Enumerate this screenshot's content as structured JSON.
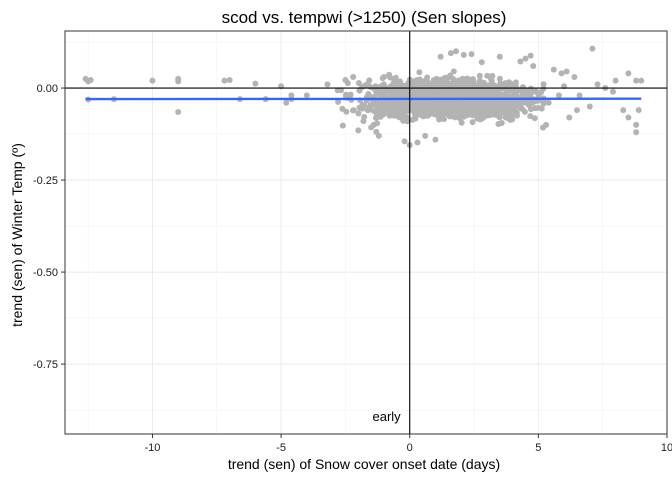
{
  "chart_data": {
    "type": "scatter",
    "title": "scod vs. tempwi (>1250) (Sen slopes)",
    "xlabel": "trend (sen) of Snow cover onset date (days)",
    "ylabel": "trend (sen) of Winter Temp (º)",
    "xlim": [
      -13.4,
      10.0
    ],
    "ylim": [
      -0.94,
      0.155
    ],
    "xticks": [
      -10,
      -5,
      0,
      5,
      10
    ],
    "yticks": [
      0.0,
      -0.25,
      -0.5,
      -0.75
    ],
    "xtick_labels": [
      "-10",
      "-5",
      "0",
      "5",
      "10"
    ],
    "ytick_labels": [
      "0.00",
      "-0.25",
      "-0.50",
      "-0.75"
    ],
    "grid": true,
    "point_color": "#b3b3b3",
    "fit_line": {
      "color": "#3366ff",
      "x": [
        -12.6,
        9.0
      ],
      "y": [
        -0.03,
        -0.029
      ]
    },
    "reference_lines": {
      "x": 0,
      "y": 0
    },
    "annotations": [
      {
        "text": "early",
        "x": -0.9,
        "y": -0.905
      }
    ],
    "cloud": {
      "x_center": 1.5,
      "x_spread": 2.1,
      "y_center": -0.03,
      "y_spread": 0.032,
      "count": 1600
    },
    "outliers": [
      [
        -12.6,
        0.025
      ],
      [
        -12.5,
        0.018
      ],
      [
        -12.4,
        0.022
      ],
      [
        -12.5,
        -0.031
      ],
      [
        -11.5,
        -0.03
      ],
      [
        -10.0,
        0.02
      ],
      [
        -9.0,
        0.025
      ],
      [
        -9.0,
        0.018
      ],
      [
        -9.0,
        -0.065
      ],
      [
        -7.2,
        0.02
      ],
      [
        -7.0,
        0.022
      ],
      [
        -6.6,
        -0.03
      ],
      [
        -6.0,
        0.012
      ],
      [
        -5.6,
        -0.03
      ],
      [
        -5.0,
        0.005
      ],
      [
        -4.8,
        -0.04
      ],
      [
        -4.6,
        -0.02
      ],
      [
        -4.6,
        -0.03
      ],
      [
        -4.0,
        -0.02
      ],
      [
        -3.2,
        0.01
      ],
      [
        -2.8,
        -0.006
      ],
      [
        -2.6,
        -0.102
      ],
      [
        -2.0,
        -0.115
      ],
      [
        -1.8,
        -0.09
      ],
      [
        -1.5,
        -0.107
      ],
      [
        -1.4,
        -0.1
      ],
      [
        -1.3,
        -0.119
      ],
      [
        -1.2,
        -0.13
      ],
      [
        -2.2,
        0.03
      ],
      [
        -2.5,
        0.022
      ],
      [
        -1.0,
        0.03
      ],
      [
        -0.2,
        -0.145
      ],
      [
        0.0,
        -0.155
      ],
      [
        0.3,
        -0.148
      ],
      [
        0.6,
        -0.13
      ],
      [
        1.0,
        -0.14
      ],
      [
        1.8,
        0.1
      ],
      [
        1.6,
        0.095
      ],
      [
        2.1,
        0.09
      ],
      [
        1.2,
        0.085
      ],
      [
        2.8,
        0.07
      ],
      [
        4.3,
        0.072
      ],
      [
        4.7,
        0.088
      ],
      [
        4.5,
        0.08
      ],
      [
        5.6,
        0.05
      ],
      [
        6.1,
        0.045
      ],
      [
        5.9,
        0.04
      ],
      [
        6.4,
        0.03
      ],
      [
        5.3,
        -0.1
      ],
      [
        6.2,
        -0.08
      ],
      [
        6.5,
        -0.06
      ],
      [
        7.0,
        -0.05
      ],
      [
        7.6,
        0.0
      ],
      [
        8.0,
        0.02
      ],
      [
        7.9,
        -0.01
      ],
      [
        8.3,
        -0.06
      ],
      [
        8.5,
        -0.08
      ],
      [
        8.8,
        -0.1
      ],
      [
        8.8,
        -0.12
      ],
      [
        8.9,
        -0.06
      ],
      [
        8.8,
        0.02
      ],
      [
        7.1,
        0.107
      ],
      [
        8.5,
        0.04
      ],
      [
        9.0,
        0.02
      ],
      [
        5.4,
        -0.04
      ],
      [
        5.8,
        -0.02
      ],
      [
        6.6,
        -0.02
      ],
      [
        7.3,
        0.01
      ],
      [
        6.0,
        0.005
      ],
      [
        4.8,
        0.06
      ],
      [
        3.5,
        0.085
      ],
      [
        2.4,
        0.092
      ]
    ]
  }
}
